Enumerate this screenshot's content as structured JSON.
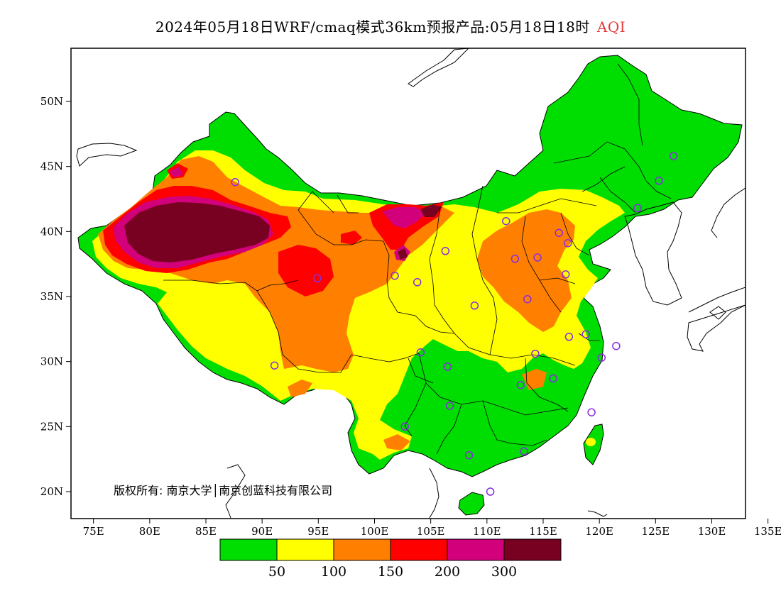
{
  "title": {
    "main": "2024年05月18日WRF/cmaq模式36km预报产品:05月18日18时",
    "variable": "AQI"
  },
  "map": {
    "lon_ticks": [
      "75E",
      "80E",
      "85E",
      "90E",
      "95E",
      "100E",
      "105E",
      "110E",
      "115E",
      "120E",
      "125E",
      "130E",
      "135E"
    ],
    "lat_ticks": [
      "50N",
      "45N",
      "40N",
      "35N",
      "30N",
      "25N",
      "20N"
    ],
    "copyright": "版权所有: 南京大学│南京创蓝科技有限公司"
  },
  "colorbar": {
    "colors": [
      "#00dd00",
      "#ffff00",
      "#ff8000",
      "#ff0000",
      "#d2007a",
      "#780020"
    ],
    "labels": [
      "50",
      "100",
      "150",
      "200",
      "300"
    ]
  },
  "station_marker_color": "#8a2be2"
}
